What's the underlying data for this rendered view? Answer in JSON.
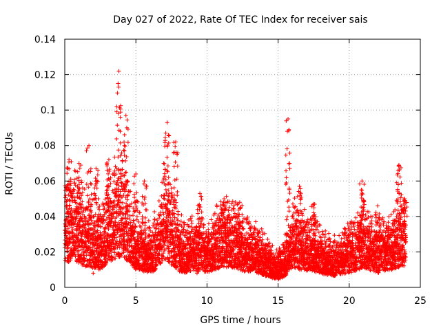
{
  "chart_data": {
    "type": "scatter",
    "title": "Day 027 of 2022, Rate Of TEC Index for receiver sais",
    "xlabel": "GPS time / hours",
    "ylabel": "ROTI / TECUs",
    "xlim": [
      0,
      25
    ],
    "ylim": [
      0,
      0.14
    ],
    "grid": true,
    "marker": "+",
    "marker_color": "#ff0000",
    "x_ticks": [
      0,
      5,
      10,
      15,
      20,
      25
    ],
    "x_tick_labels": [
      "0",
      "5",
      "10",
      "15",
      "20",
      "25"
    ],
    "y_ticks": [
      0,
      0.02,
      0.04,
      0.06,
      0.08,
      0.1,
      0.12,
      0.14
    ],
    "y_tick_labels": [
      "0",
      "0.02",
      "0.04",
      "0.06",
      "0.08",
      "0.1",
      "0.12",
      "0.14"
    ],
    "series": [
      {
        "name": "ROTI",
        "x_range": [
          0,
          24
        ],
        "baseline_envelope": [
          [
            0,
            0.028
          ],
          [
            0.5,
            0.035
          ],
          [
            1,
            0.03
          ],
          [
            1.5,
            0.026
          ],
          [
            2,
            0.024
          ],
          [
            2.5,
            0.022
          ],
          [
            3,
            0.03
          ],
          [
            3.5,
            0.035
          ],
          [
            4,
            0.038
          ],
          [
            4.5,
            0.03
          ],
          [
            5,
            0.022
          ],
          [
            5.5,
            0.02
          ],
          [
            6,
            0.018
          ],
          [
            6.5,
            0.022
          ],
          [
            7,
            0.035
          ],
          [
            7.5,
            0.028
          ],
          [
            8,
            0.02
          ],
          [
            8.5,
            0.018
          ],
          [
            9,
            0.02
          ],
          [
            9.5,
            0.02
          ],
          [
            10,
            0.018
          ],
          [
            10.5,
            0.022
          ],
          [
            11,
            0.024
          ],
          [
            11.5,
            0.025
          ],
          [
            12,
            0.024
          ],
          [
            12.5,
            0.02
          ],
          [
            13,
            0.02
          ],
          [
            13.5,
            0.018
          ],
          [
            14,
            0.015
          ],
          [
            14.5,
            0.012
          ],
          [
            15,
            0.01
          ],
          [
            15.5,
            0.014
          ],
          [
            16,
            0.025
          ],
          [
            16.5,
            0.022
          ],
          [
            17,
            0.02
          ],
          [
            17.5,
            0.02
          ],
          [
            18,
            0.017
          ],
          [
            18.5,
            0.015
          ],
          [
            19,
            0.014
          ],
          [
            19.5,
            0.016
          ],
          [
            20,
            0.018
          ],
          [
            20.5,
            0.02
          ],
          [
            21,
            0.025
          ],
          [
            21.5,
            0.02
          ],
          [
            22,
            0.018
          ],
          [
            22.5,
            0.02
          ],
          [
            23,
            0.022
          ],
          [
            23.5,
            0.025
          ],
          [
            24,
            0.025
          ]
        ],
        "peaks": [
          {
            "x": 0.3,
            "y": 0.072
          },
          {
            "x": 1.0,
            "y": 0.07
          },
          {
            "x": 1.7,
            "y": 0.08
          },
          {
            "x": 2.2,
            "y": 0.067
          },
          {
            "x": 3.1,
            "y": 0.072
          },
          {
            "x": 3.8,
            "y": 0.122
          },
          {
            "x": 4.3,
            "y": 0.097
          },
          {
            "x": 5.0,
            "y": 0.064
          },
          {
            "x": 5.6,
            "y": 0.06
          },
          {
            "x": 7.2,
            "y": 0.093
          },
          {
            "x": 7.8,
            "y": 0.082
          },
          {
            "x": 9.5,
            "y": 0.053
          },
          {
            "x": 11.2,
            "y": 0.05
          },
          {
            "x": 12.3,
            "y": 0.048
          },
          {
            "x": 15.7,
            "y": 0.095
          },
          {
            "x": 16.5,
            "y": 0.057
          },
          {
            "x": 17.5,
            "y": 0.047
          },
          {
            "x": 20.9,
            "y": 0.06
          },
          {
            "x": 22.0,
            "y": 0.046
          },
          {
            "x": 23.5,
            "y": 0.069
          },
          {
            "x": 23.9,
            "y": 0.05
          }
        ],
        "samples": [
          [
            0.05,
            0.024
          ],
          [
            0.12,
            0.056
          ],
          [
            0.2,
            0.031
          ],
          [
            0.4,
            0.041
          ],
          [
            0.55,
            0.02
          ],
          [
            0.7,
            0.066
          ],
          [
            0.85,
            0.028
          ],
          [
            1.1,
            0.045
          ],
          [
            1.3,
            0.018
          ],
          [
            1.45,
            0.036
          ],
          [
            1.6,
            0.012
          ],
          [
            1.85,
            0.03
          ],
          [
            2.0,
            0.008
          ],
          [
            2.35,
            0.05
          ],
          [
            2.6,
            0.019
          ],
          [
            2.8,
            0.033
          ],
          [
            3.0,
            0.055
          ],
          [
            3.3,
            0.041
          ],
          [
            3.5,
            0.063
          ],
          [
            3.65,
            0.102
          ],
          [
            3.75,
            0.115
          ],
          [
            3.9,
            0.088
          ],
          [
            4.05,
            0.071
          ],
          [
            4.2,
            0.08
          ],
          [
            4.45,
            0.052
          ],
          [
            4.7,
            0.03
          ],
          [
            5.2,
            0.015
          ],
          [
            5.45,
            0.04
          ],
          [
            5.8,
            0.009
          ],
          [
            6.1,
            0.025
          ],
          [
            6.4,
            0.033
          ],
          [
            6.75,
            0.046
          ],
          [
            6.95,
            0.07
          ],
          [
            7.1,
            0.087
          ],
          [
            7.3,
            0.062
          ],
          [
            7.55,
            0.052
          ],
          [
            7.9,
            0.075
          ],
          [
            8.2,
            0.012
          ],
          [
            8.6,
            0.03
          ],
          [
            9.0,
            0.022
          ],
          [
            9.3,
            0.008
          ],
          [
            9.6,
            0.036
          ],
          [
            9.9,
            0.028
          ],
          [
            10.2,
            0.015
          ],
          [
            10.6,
            0.032
          ],
          [
            11.0,
            0.042
          ],
          [
            11.4,
            0.02
          ],
          [
            11.8,
            0.034
          ],
          [
            12.1,
            0.029
          ],
          [
            12.6,
            0.039
          ],
          [
            13.0,
            0.013
          ],
          [
            13.3,
            0.031
          ],
          [
            13.7,
            0.018
          ],
          [
            14.1,
            0.022
          ],
          [
            14.5,
            0.009
          ],
          [
            14.9,
            0.006
          ],
          [
            15.2,
            0.014
          ],
          [
            15.5,
            0.03
          ],
          [
            15.65,
            0.088
          ],
          [
            15.8,
            0.07
          ],
          [
            16.0,
            0.04
          ],
          [
            16.3,
            0.028
          ],
          [
            16.6,
            0.05
          ],
          [
            16.9,
            0.02
          ],
          [
            17.2,
            0.031
          ],
          [
            17.6,
            0.038
          ],
          [
            18.0,
            0.012
          ],
          [
            18.4,
            0.026
          ],
          [
            18.8,
            0.01
          ],
          [
            19.2,
            0.017
          ],
          [
            19.6,
            0.025
          ],
          [
            20.0,
            0.03
          ],
          [
            20.3,
            0.022
          ],
          [
            20.6,
            0.042
          ],
          [
            20.85,
            0.055
          ],
          [
            21.2,
            0.033
          ],
          [
            21.6,
            0.015
          ],
          [
            22.1,
            0.038
          ],
          [
            22.5,
            0.024
          ],
          [
            22.9,
            0.03
          ],
          [
            23.2,
            0.019
          ],
          [
            23.45,
            0.058
          ],
          [
            23.6,
            0.035
          ],
          [
            23.8,
            0.044
          ],
          [
            23.95,
            0.027
          ]
        ]
      }
    ]
  }
}
